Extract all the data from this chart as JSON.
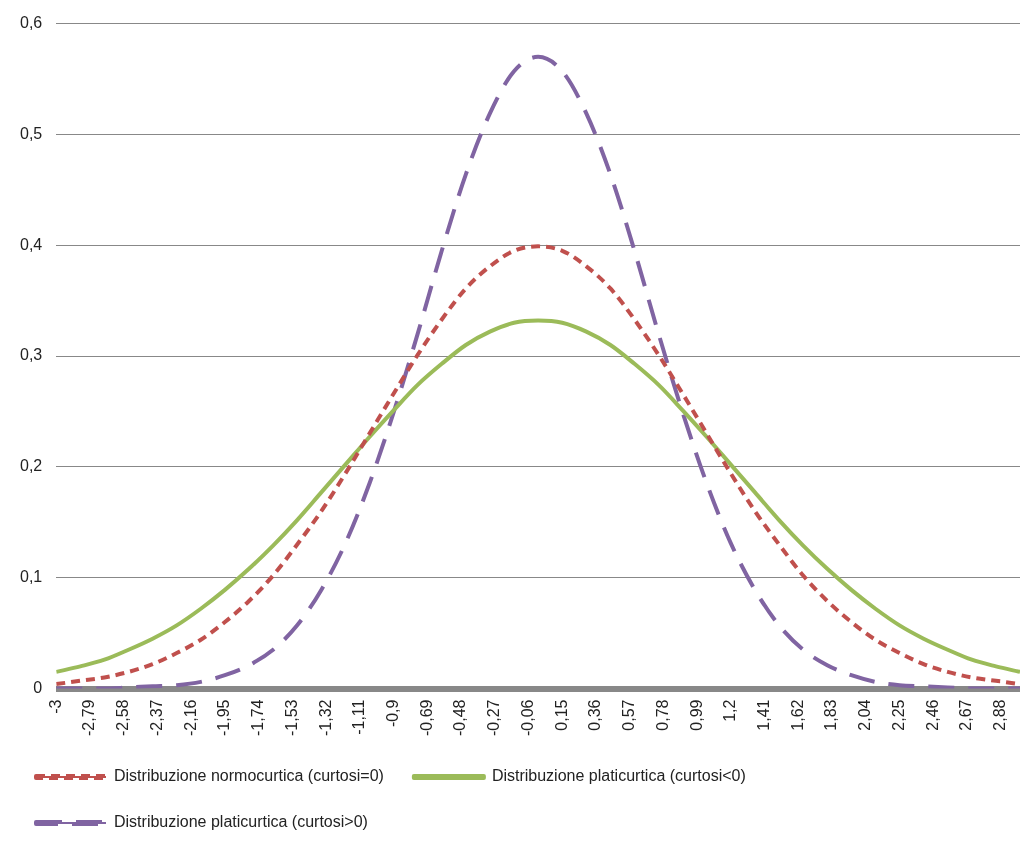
{
  "chart_data": {
    "type": "line",
    "x": [
      -3,
      -2.85,
      -2.7,
      -2.55,
      -2.4,
      -2.25,
      -2.1,
      -1.95,
      -1.8,
      -1.65,
      -1.5,
      -1.35,
      -1.2,
      -1.05,
      -0.9,
      -0.75,
      -0.6,
      -0.45,
      -0.3,
      -0.15,
      0,
      0.15,
      0.3,
      0.45,
      0.6,
      0.75,
      0.9,
      1.05,
      1.2,
      1.35,
      1.5,
      1.65,
      1.8,
      1.95,
      2.1,
      2.25,
      2.4,
      2.55,
      2.7,
      2.85,
      3
    ],
    "series": [
      {
        "name": "Distribuzione normocurtica (curtosi=0)",
        "color": "#c0504d",
        "line_style": "dashed",
        "values": [
          0.004,
          0.007,
          0.01,
          0.015,
          0.022,
          0.032,
          0.044,
          0.06,
          0.079,
          0.102,
          0.13,
          0.16,
          0.194,
          0.23,
          0.266,
          0.301,
          0.333,
          0.361,
          0.381,
          0.395,
          0.399,
          0.395,
          0.381,
          0.361,
          0.333,
          0.301,
          0.266,
          0.23,
          0.194,
          0.16,
          0.13,
          0.102,
          0.079,
          0.06,
          0.044,
          0.032,
          0.022,
          0.015,
          0.01,
          0.007,
          0.004
        ]
      },
      {
        "name": "Distribuzione platicurtica (curtosi<0)",
        "color": "#9bbb59",
        "line_style": "solid",
        "values": [
          0.015,
          0.02,
          0.026,
          0.035,
          0.045,
          0.057,
          0.072,
          0.089,
          0.108,
          0.129,
          0.152,
          0.177,
          0.202,
          0.227,
          0.251,
          0.274,
          0.293,
          0.31,
          0.322,
          0.33,
          0.332,
          0.33,
          0.322,
          0.31,
          0.293,
          0.274,
          0.251,
          0.227,
          0.202,
          0.177,
          0.152,
          0.129,
          0.108,
          0.089,
          0.072,
          0.057,
          0.045,
          0.035,
          0.026,
          0.02,
          0.015
        ]
      },
      {
        "name": "Distribuzione platicurtica (curtosi>0)",
        "color": "#8064a2",
        "line_style": "dashed",
        "values": [
          0,
          0,
          0,
          0.001,
          0.002,
          0.003,
          0.006,
          0.012,
          0.021,
          0.035,
          0.057,
          0.089,
          0.131,
          0.185,
          0.249,
          0.32,
          0.395,
          0.464,
          0.519,
          0.557,
          0.57,
          0.557,
          0.519,
          0.464,
          0.395,
          0.32,
          0.249,
          0.185,
          0.131,
          0.089,
          0.057,
          0.035,
          0.021,
          0.012,
          0.006,
          0.003,
          0.002,
          0.001,
          0,
          0,
          0
        ]
      }
    ],
    "xlim": [
      -3,
      3
    ],
    "xticks": [
      {
        "value": -3,
        "label": "-3"
      },
      {
        "value": -2.79,
        "label": "-2,79"
      },
      {
        "value": -2.58,
        "label": "-2,58"
      },
      {
        "value": -2.37,
        "label": "-2,37"
      },
      {
        "value": -2.16,
        "label": "-2,16"
      },
      {
        "value": -1.95,
        "label": "-1,95"
      },
      {
        "value": -1.74,
        "label": "-1,74"
      },
      {
        "value": -1.53,
        "label": "-1,53"
      },
      {
        "value": -1.32,
        "label": "-1,32"
      },
      {
        "value": -1.11,
        "label": "-1,11"
      },
      {
        "value": -0.9,
        "label": "-0,9"
      },
      {
        "value": -0.69,
        "label": "-0,69"
      },
      {
        "value": -0.48,
        "label": "-0,48"
      },
      {
        "value": -0.27,
        "label": "-0,27"
      },
      {
        "value": -0.06,
        "label": "-0,06"
      },
      {
        "value": 0.15,
        "label": "0,15"
      },
      {
        "value": 0.36,
        "label": "0,36"
      },
      {
        "value": 0.57,
        "label": "0,57"
      },
      {
        "value": 0.78,
        "label": "0,78"
      },
      {
        "value": 0.99,
        "label": "0,99"
      },
      {
        "value": 1.2,
        "label": "1,2"
      },
      {
        "value": 1.41,
        "label": "1,41"
      },
      {
        "value": 1.62,
        "label": "1,62"
      },
      {
        "value": 1.83,
        "label": "1,83"
      },
      {
        "value": 2.04,
        "label": "2,04"
      },
      {
        "value": 2.25,
        "label": "2,25"
      },
      {
        "value": 2.46,
        "label": "2,46"
      },
      {
        "value": 2.67,
        "label": "2,67"
      },
      {
        "value": 2.88,
        "label": "2,88"
      }
    ],
    "ylim": [
      0,
      0.6
    ],
    "yticks": [
      0,
      {
        "value": 0.1,
        "label": "0,1"
      },
      {
        "value": 0.2,
        "label": "0,2"
      },
      {
        "value": 0.3,
        "label": "0,3"
      },
      {
        "value": 0.4,
        "label": "0,4"
      },
      {
        "value": 0.5,
        "label": "0,5"
      },
      {
        "value": 0.6,
        "label": "0,6"
      }
    ],
    "grid": "y",
    "legend": "bottom",
    "marker": "none"
  }
}
